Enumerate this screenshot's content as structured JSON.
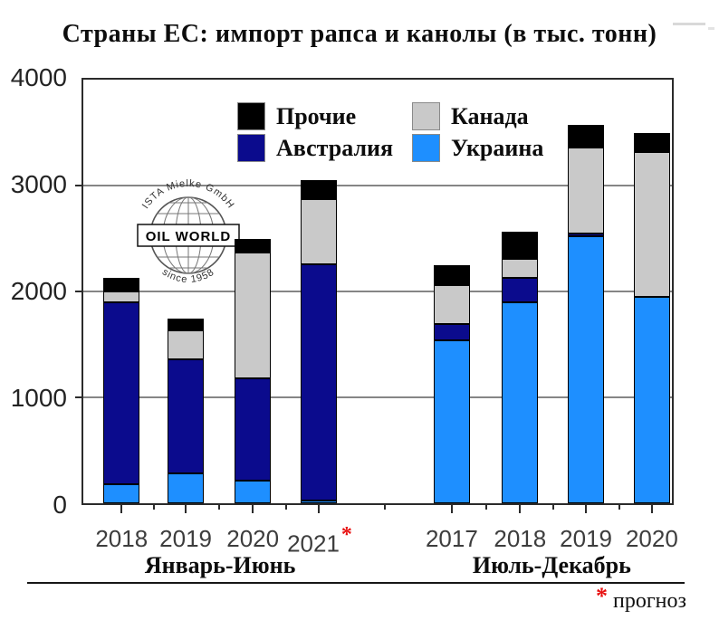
{
  "title": "Страны ЕС: импорт рапса и канолы (в тыс. тонн)",
  "logo": {
    "arc_top": "ISTA Mielke GmbH",
    "center": "OIL WORLD",
    "arc_bottom": "since 1958"
  },
  "footnote": {
    "marker": "*",
    "text": "прогноз"
  },
  "accent_red": "#e81010",
  "chart_data": {
    "type": "bar",
    "stacked": true,
    "title": "Страны ЕС: импорт рапса и канолы (в тыс. тонн)",
    "unit": "тыс. тонн",
    "ylim": [
      0,
      4000
    ],
    "yticks": [
      0,
      1000,
      2000,
      3000,
      4000
    ],
    "grid": "horizontal",
    "forecast_marker": "*",
    "stack_order": [
      "Украина",
      "Австралия",
      "Канада",
      "Прочие"
    ],
    "series": [
      {
        "name": "Прочие",
        "color": "#000000"
      },
      {
        "name": "Австралия",
        "color": "#0b0b8d"
      },
      {
        "name": "Канада",
        "color": "#c9c9c9"
      },
      {
        "name": "Украина",
        "color": "#1e8fff"
      }
    ],
    "legend": {
      "position": "top-inside",
      "entries": [
        {
          "label": "Прочие",
          "color": "#000000"
        },
        {
          "label": "Австралия",
          "color": "#0b0b8d"
        },
        {
          "label": "Канада",
          "color": "#c9c9c9"
        },
        {
          "label": "Украина",
          "color": "#1e8fff"
        }
      ]
    },
    "groups": [
      {
        "label": "Январь-Июнь",
        "bars": [
          {
            "year": "2018",
            "forecast": false,
            "values": {
              "Украина": 180,
              "Австралия": 1720,
              "Канада": 100,
              "Прочие": 130
            }
          },
          {
            "year": "2019",
            "forecast": false,
            "values": {
              "Украина": 280,
              "Австралия": 1080,
              "Канада": 270,
              "Прочие": 110
            }
          },
          {
            "year": "2020",
            "forecast": false,
            "values": {
              "Украина": 210,
              "Австралия": 970,
              "Канада": 1190,
              "Прочие": 130
            }
          },
          {
            "year": "2021",
            "forecast": true,
            "values": {
              "Украина": 30,
              "Австралия": 2230,
              "Канада": 610,
              "Прочие": 180
            }
          }
        ]
      },
      {
        "label": "Июль-Декабрь",
        "bars": [
          {
            "year": "2017",
            "forecast": false,
            "values": {
              "Украина": 1540,
              "Австралия": 150,
              "Канада": 370,
              "Прочие": 190
            }
          },
          {
            "year": "2018",
            "forecast": false,
            "values": {
              "Украина": 1900,
              "Австралия": 230,
              "Канада": 180,
              "Прочие": 250
            }
          },
          {
            "year": "2019",
            "forecast": false,
            "values": {
              "Украина": 2520,
              "Австралия": 30,
              "Канада": 810,
              "Прочие": 210
            }
          },
          {
            "year": "2020",
            "forecast": false,
            "values": {
              "Украина": 1950,
              "Австралия": 0,
              "Канада": 1370,
              "Прочие": 180
            }
          }
        ]
      }
    ]
  }
}
